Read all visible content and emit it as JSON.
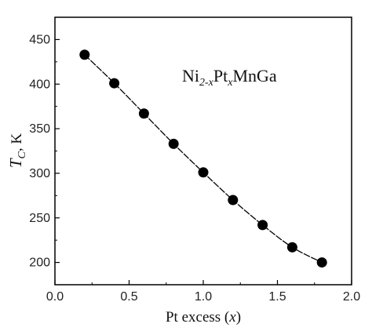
{
  "chart_data": {
    "type": "scatter",
    "xlabel": {
      "prefix": "Pt excess (",
      "var": "x",
      "suffix": ")"
    },
    "ylabel": {
      "var": "T",
      "sub": "C",
      "suffix": ", K"
    },
    "annotation": {
      "base1": "Ni",
      "sub1": "2-x",
      "base2": "Pt",
      "sub2": "x",
      "base3": "MnGa"
    },
    "xlim": [
      0.0,
      2.0
    ],
    "ylim": [
      175,
      475
    ],
    "x_ticks": [
      "0.0",
      "0.5",
      "1.0",
      "1.5",
      "2.0"
    ],
    "y_ticks": [
      "200",
      "250",
      "300",
      "350",
      "400",
      "450"
    ],
    "grid": false,
    "series": [
      {
        "x": [
          0.2,
          0.4,
          0.6,
          0.8,
          1.0,
          1.2,
          1.4,
          1.6,
          1.8
        ],
        "values": [
          433,
          401,
          367,
          333,
          301,
          270,
          242,
          217,
          200
        ],
        "marker": "filled-circle",
        "line": "smooth-fit"
      }
    ],
    "colors": {
      "marker": "#000000",
      "line": "#000000",
      "axes": "#000000"
    }
  }
}
